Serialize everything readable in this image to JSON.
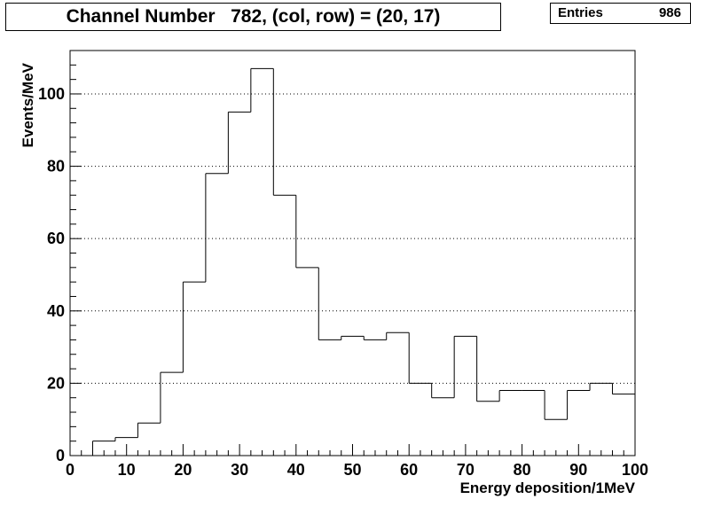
{
  "title": "Channel Number   782, (col, row) = (20, 17)",
  "stats": {
    "label": "Entries",
    "value": "986"
  },
  "chart_data": {
    "type": "histogram",
    "title": "Channel Number   782, (col, row) = (20, 17)",
    "xlabel": "Energy deposition/1MeV",
    "ylabel": "Events/MeV",
    "xlim": [
      0,
      100
    ],
    "ylim": [
      0,
      112
    ],
    "bin_width": 4,
    "bin_edges": [
      0,
      4,
      8,
      12,
      16,
      20,
      24,
      28,
      32,
      36,
      40,
      44,
      48,
      52,
      56,
      60,
      64,
      68,
      72,
      76,
      80,
      84,
      88,
      92,
      96,
      100
    ],
    "values": [
      0,
      4,
      5,
      9,
      23,
      48,
      78,
      95,
      107,
      72,
      52,
      32,
      33,
      32,
      34,
      20,
      16,
      33,
      15,
      18,
      18,
      10,
      18,
      20,
      17
    ],
    "x_ticks": [
      0,
      10,
      20,
      30,
      40,
      50,
      60,
      70,
      80,
      90,
      100
    ],
    "x_tick_labels": [
      "0",
      "10",
      "20",
      "30",
      "40",
      "50",
      "60",
      "70",
      "80",
      "90",
      "100"
    ],
    "y_ticks": [
      0,
      20,
      40,
      60,
      80,
      100
    ],
    "y_tick_labels": [
      "0",
      "20",
      "40",
      "60",
      "80",
      "100"
    ],
    "grid": "horizontal dotted",
    "line_color": "#000000"
  }
}
